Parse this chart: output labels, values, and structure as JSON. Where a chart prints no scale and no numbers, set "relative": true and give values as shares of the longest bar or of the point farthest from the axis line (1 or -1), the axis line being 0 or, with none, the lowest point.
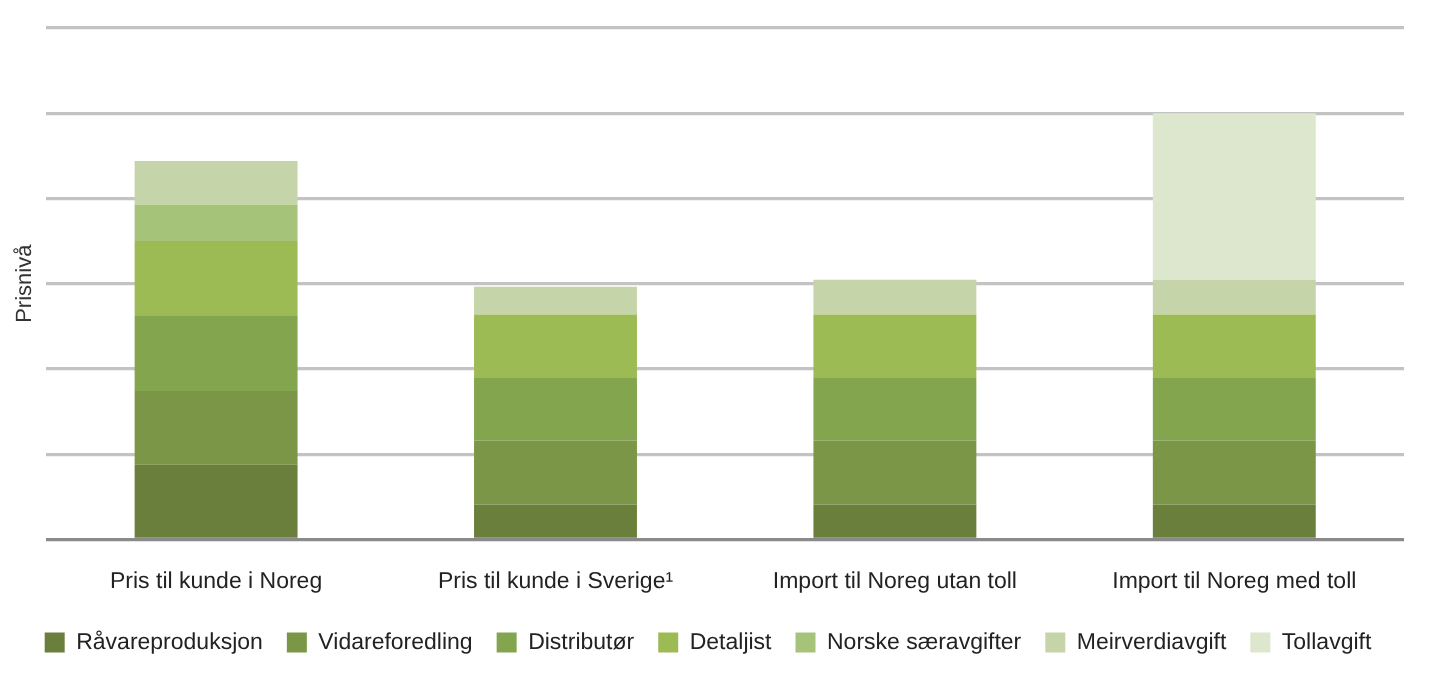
{
  "chart_data": {
    "type": "bar",
    "stacked": true,
    "relative": true,
    "ylabel": "Prisnivå",
    "grid": "y",
    "legend": "bottom",
    "categories": [
      "Pris til kunde i Noreg",
      "Pris til kunde i Sverige¹",
      "Import til Noreg utan toll",
      "Import til Noreg med toll"
    ],
    "series": [
      {
        "name": "Råvareproduksjon",
        "color": "#6a7f3b",
        "values": [
          0.175,
          0.082,
          0.082,
          0.082
        ]
      },
      {
        "name": "Vidareforedling",
        "color": "#7a9646",
        "values": [
          0.173,
          0.15,
          0.15,
          0.15
        ]
      },
      {
        "name": "Distributør",
        "color": "#82a54e",
        "values": [
          0.176,
          0.147,
          0.147,
          0.147
        ]
      },
      {
        "name": "Detaljist",
        "color": "#9dbb55",
        "values": [
          0.176,
          0.149,
          0.149,
          0.149
        ]
      },
      {
        "name": "Norske særavgifter",
        "color": "#a5c47a",
        "values": [
          0.086,
          0,
          0,
          0
        ]
      },
      {
        "name": "Meirverdiavgift",
        "color": "#c6d5a9",
        "values": [
          0.102,
          0.065,
          0.081,
          0.081
        ]
      },
      {
        "name": "Tollavgift",
        "color": "#dde7cd",
        "values": [
          0,
          0,
          0,
          0.391
        ]
      }
    ]
  }
}
